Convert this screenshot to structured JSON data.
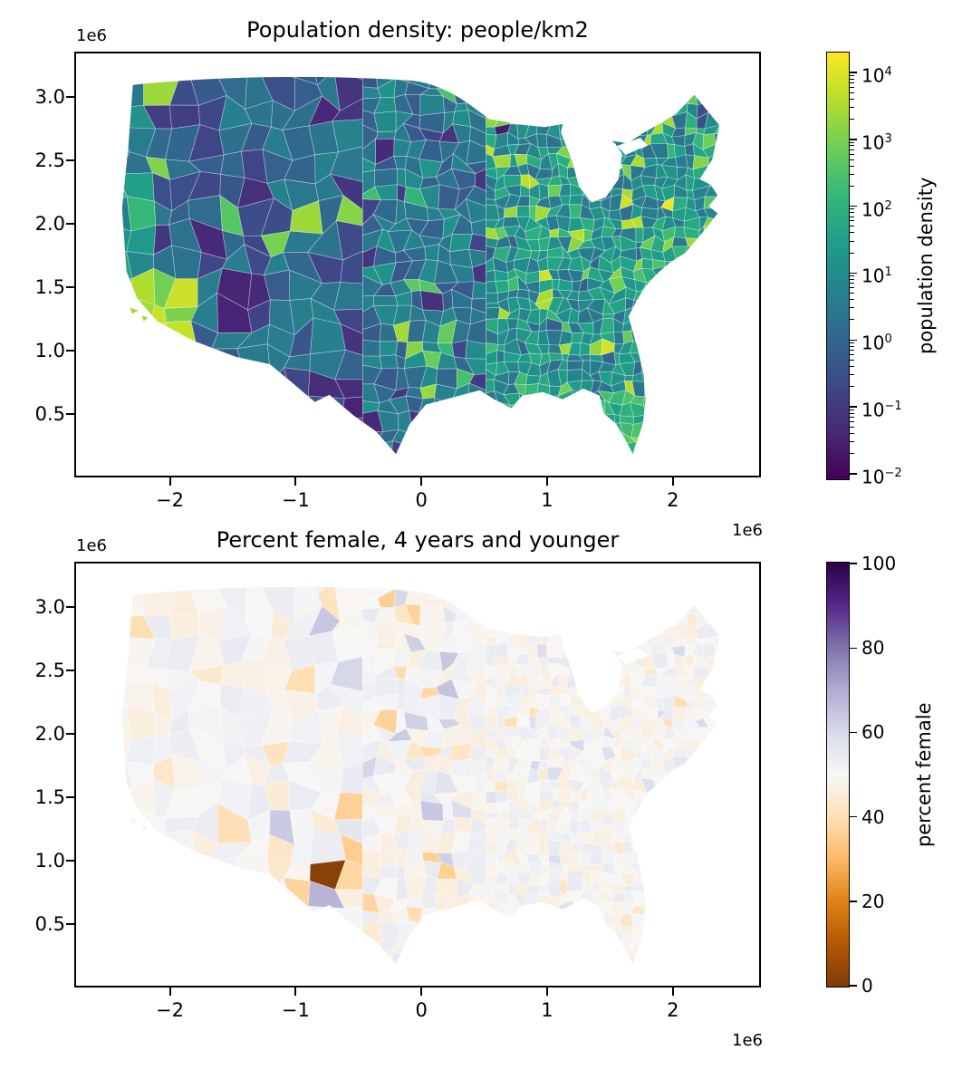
{
  "chart_data": [
    {
      "type": "choropleth",
      "title": "Population density: people/km2",
      "region": "Contiguous United States, county level",
      "x_axis": {
        "offset_text": "1e6",
        "tick_labels": [
          "−2",
          "−1",
          "0",
          "1",
          "2"
        ],
        "tick_values_e6": [
          -2,
          -1,
          0,
          1,
          2
        ],
        "range_e6": [
          -2.76,
          2.7
        ]
      },
      "y_axis": {
        "offset_text": "1e6",
        "tick_labels": [
          "3.0",
          "2.5",
          "2.0",
          "1.5",
          "1.0",
          "0.5"
        ],
        "tick_values_e6": [
          3.0,
          2.5,
          2.0,
          1.5,
          1.0,
          0.5
        ],
        "range_e6": [
          0.0,
          3.36
        ]
      },
      "colorbar": {
        "label": "population density",
        "scale": "log",
        "colormap": "viridis",
        "tick_exponents": [
          4,
          3,
          2,
          1,
          0,
          -1,
          -2
        ],
        "approx_value_range": [
          0.008,
          20000
        ],
        "stops": [
          "#440154",
          "#482878",
          "#3e4989",
          "#31688e",
          "#26828e",
          "#1f9e89",
          "#35b779",
          "#6ece58",
          "#b5de2b",
          "#fde725"
        ]
      },
      "observations": "Most counties 1–100 people/km2 (teal–green); Mountain West counties darkest (below 1); bright yellow-green hotspots at major metros (New York, Chicago, Los Angeles, San Francisco, Denver, Dallas, Atlanta, Miami)."
    },
    {
      "type": "choropleth",
      "title": "Percent female, 4 years and younger",
      "region": "Contiguous United States, county level",
      "x_axis": {
        "offset_text": "1e6",
        "tick_labels": [
          "−2",
          "−1",
          "0",
          "1",
          "2"
        ],
        "tick_values_e6": [
          -2,
          -1,
          0,
          1,
          2
        ],
        "range_e6": [
          -2.76,
          2.7
        ]
      },
      "y_axis": {
        "offset_text": "1e6",
        "tick_labels": [
          "3.0",
          "2.5",
          "2.0",
          "1.5",
          "1.0",
          "0.5"
        ],
        "tick_values_e6": [
          3.0,
          2.5,
          2.0,
          1.5,
          1.0,
          0.5
        ],
        "range_e6": [
          0.0,
          3.36
        ]
      },
      "colorbar": {
        "label": "percent female",
        "scale": "linear",
        "colormap": "PuOr",
        "tick_values": [
          100,
          80,
          60,
          40,
          20,
          0
        ],
        "value_range": [
          0,
          100
        ],
        "stops": [
          "#7f3b08",
          "#b35806",
          "#e08214",
          "#fdb863",
          "#fee0b6",
          "#f7f7f7",
          "#d8daeb",
          "#b2abd2",
          "#8073ac",
          "#542788",
          "#2d004b"
        ]
      },
      "observations": "Nearly all counties close to 50% (near white); scattered pale orange (below 50%) and pale purple (above 50%) counties, most visible across the Great Plains; one dark brown outlier county near (−0.7e6, 1.0e6) in southwest Texas."
    }
  ],
  "colors": {
    "background": "#ffffff",
    "axes": "#000000",
    "county_edge": "rgba(255,255,255,0.5)",
    "lake": "#ffffff"
  }
}
